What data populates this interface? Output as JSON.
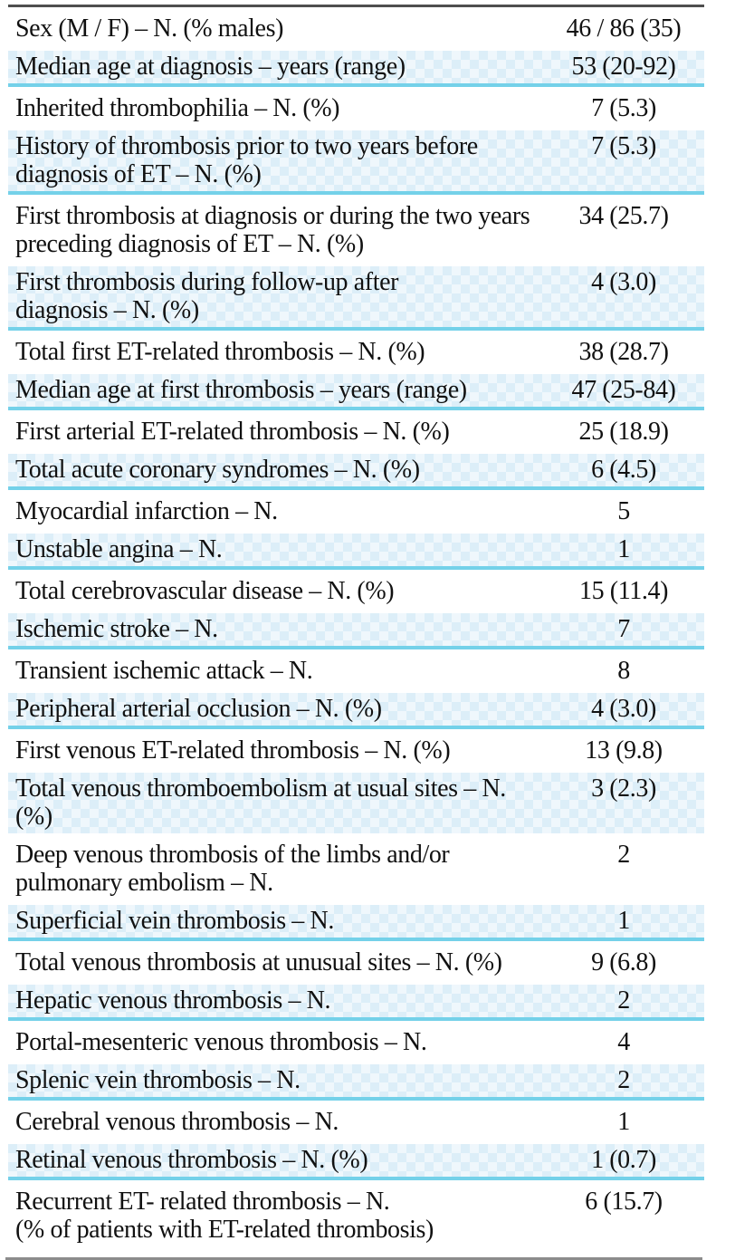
{
  "colors": {
    "shade-bg": "#dceef8",
    "divider": "#74d1e9",
    "top-rule": "#4e4e4e",
    "bottom-rule": "#8c8c8c",
    "text": "#111111"
  },
  "table": {
    "rows": [
      {
        "label": [
          "Sex (M / F) – N. (% males)"
        ],
        "value": "46 / 86 (35)",
        "shade": "white",
        "divider": false
      },
      {
        "label": [
          "Median age at diagnosis – years (range)"
        ],
        "value": "53 (20-92)",
        "shade": "blue",
        "divider": true
      },
      {
        "label": [
          "Inherited thrombophilia – N. (%)"
        ],
        "value": "7 (5.3)",
        "shade": "white",
        "divider": false
      },
      {
        "label": [
          "History of thrombosis prior to two years before",
          "diagnosis of ET – N. (%)"
        ],
        "value": "7 (5.3)",
        "shade": "blue",
        "divider": true
      },
      {
        "label": [
          "First thrombosis at diagnosis or during the two years",
          "preceding diagnosis of ET – N. (%)"
        ],
        "value": "34 (25.7)",
        "shade": "white",
        "divider": false
      },
      {
        "label": [
          "First thrombosis during follow-up after",
          "diagnosis – N. (%)"
        ],
        "value": "4 (3.0)",
        "shade": "blue",
        "divider": true
      },
      {
        "label": [
          "Total first ET-related thrombosis – N. (%)"
        ],
        "value": "38 (28.7)",
        "shade": "white",
        "divider": false
      },
      {
        "label": [
          "Median age at first thrombosis – years (range)"
        ],
        "value": "47 (25-84)",
        "shade": "blue",
        "divider": true
      },
      {
        "label": [
          "First arterial ET-related thrombosis – N. (%)"
        ],
        "value": "25 (18.9)",
        "shade": "white",
        "divider": false
      },
      {
        "label": [
          "Total acute coronary syndromes – N. (%)"
        ],
        "value": "6 (4.5)",
        "shade": "blue",
        "divider": true
      },
      {
        "label": [
          "Myocardial infarction – N."
        ],
        "value": "5",
        "shade": "white",
        "divider": false
      },
      {
        "label": [
          "Unstable angina – N."
        ],
        "value": "1",
        "shade": "blue",
        "divider": true
      },
      {
        "label": [
          "Total cerebrovascular disease – N. (%)"
        ],
        "value": "15 (11.4)",
        "shade": "white",
        "divider": false
      },
      {
        "label": [
          "Ischemic stroke – N."
        ],
        "value": "7",
        "shade": "blue",
        "divider": true
      },
      {
        "label": [
          "Transient ischemic attack – N."
        ],
        "value": "8",
        "shade": "white",
        "divider": false
      },
      {
        "label": [
          "Peripheral arterial occlusion – N. (%)"
        ],
        "value": "4 (3.0)",
        "shade": "blue",
        "divider": true
      },
      {
        "label": [
          "First venous ET-related thrombosis – N. (%)"
        ],
        "value": "13 (9.8)",
        "shade": "white",
        "divider": false
      },
      {
        "label": [
          "Total venous thromboembolism at usual sites – N. (%)"
        ],
        "value": "3 (2.3)",
        "shade": "blue",
        "divider": false
      },
      {
        "label": [
          "Deep venous thrombosis of the limbs and/or",
          "pulmonary embolism – N."
        ],
        "value": "2",
        "shade": "white",
        "divider": false
      },
      {
        "label": [
          "Superficial vein thrombosis – N."
        ],
        "value": "1",
        "shade": "blue",
        "divider": true
      },
      {
        "label": [
          "Total venous thrombosis at unusual sites – N. (%)"
        ],
        "value": "9 (6.8)",
        "shade": "white",
        "divider": false
      },
      {
        "label": [
          "Hepatic venous thrombosis – N."
        ],
        "value": "2",
        "shade": "blue",
        "divider": true
      },
      {
        "label": [
          "Portal-mesenteric venous thrombosis – N."
        ],
        "value": "4",
        "shade": "white",
        "divider": false
      },
      {
        "label": [
          "Splenic vein thrombosis – N."
        ],
        "value": "2",
        "shade": "blue",
        "divider": true
      },
      {
        "label": [
          "Cerebral venous thrombosis – N."
        ],
        "value": "1",
        "shade": "white",
        "divider": false
      },
      {
        "label": [
          "Retinal venous thrombosis – N. (%)"
        ],
        "value": "1 (0.7)",
        "shade": "blue",
        "divider": true
      },
      {
        "label": [
          "Recurrent ET- related thrombosis – N.",
          "(% of patients with ET-related thrombosis)"
        ],
        "value": "6 (15.7)",
        "shade": "white",
        "divider": false
      }
    ]
  }
}
